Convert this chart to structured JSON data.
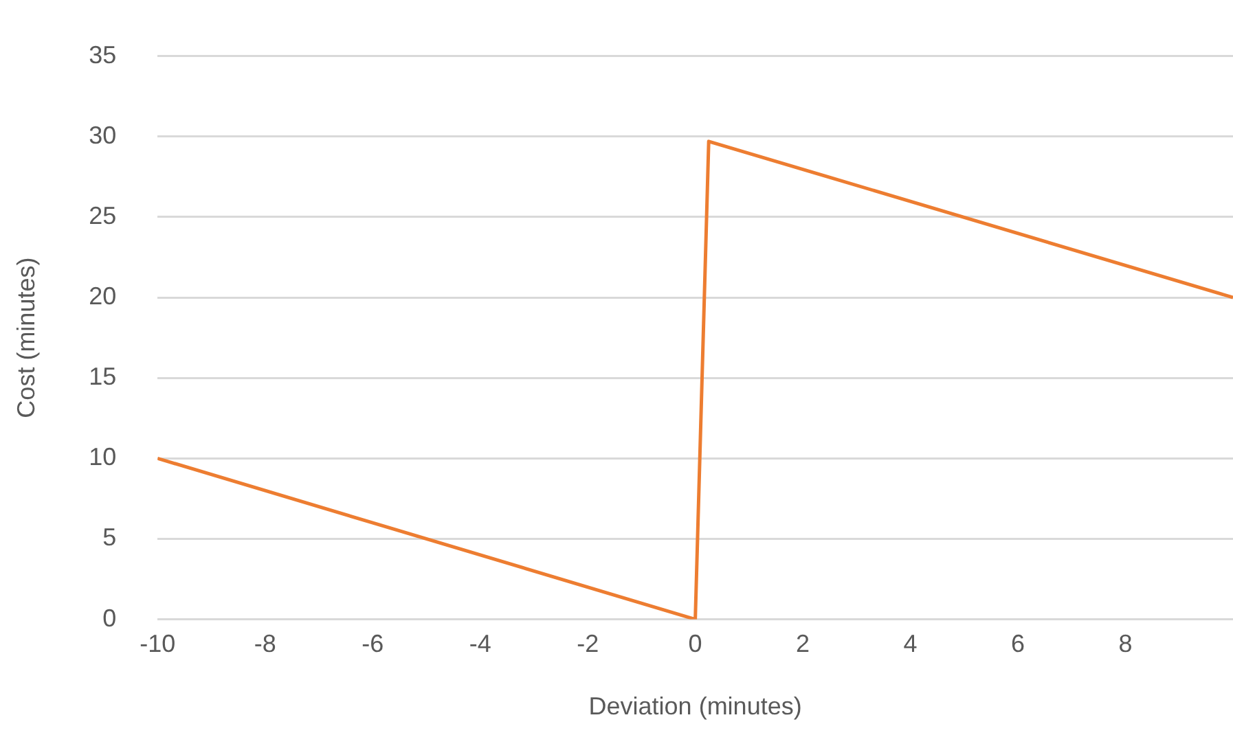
{
  "chart_data": {
    "type": "line",
    "xlabel": "Deviation (minutes)",
    "ylabel": "Cost (minutes)",
    "x": [
      -10,
      0,
      0.25,
      10
    ],
    "series": [
      {
        "color": "#ed7d31",
        "values": [
          10,
          0,
          29.7,
          20
        ]
      }
    ],
    "xlim": [
      -10,
      10
    ],
    "xticks": [
      -10,
      -8,
      -6,
      -4,
      -2,
      0,
      2,
      4,
      6,
      8
    ],
    "ylim": [
      0,
      35
    ],
    "yticks": [
      0,
      5,
      10,
      15,
      20,
      25,
      30,
      35
    ],
    "grid": "y",
    "legend": false,
    "marker": "none",
    "line_style": "solid"
  }
}
